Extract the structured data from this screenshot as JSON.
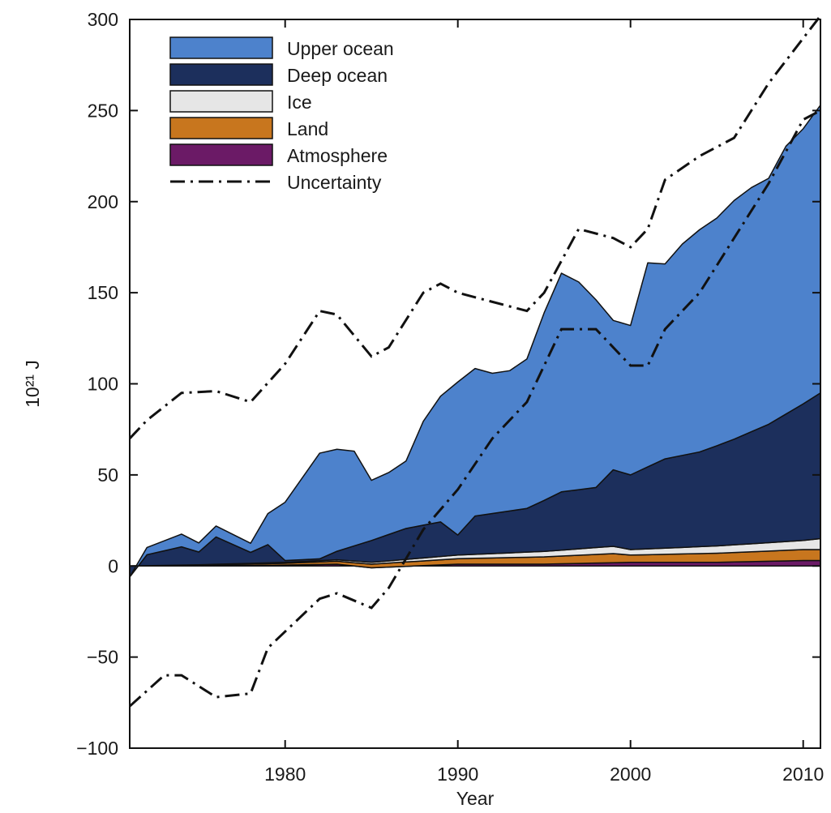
{
  "chart_data": {
    "type": "area",
    "xlabel": "Year",
    "ylabel": "10²¹ J",
    "xlim": [
      1971,
      2011
    ],
    "ylim": [
      -100,
      300
    ],
    "x_ticks": [
      1980,
      1990,
      2000,
      2010
    ],
    "y_ticks": [
      -100,
      -50,
      0,
      50,
      100,
      150,
      200,
      250,
      300
    ],
    "legend_position": "top-left",
    "stacked": true,
    "series": [
      {
        "name": "Atmosphere",
        "color": "#6b1a66",
        "points": [
          [
            1971,
            0
          ],
          [
            1975,
            0
          ],
          [
            1980,
            0.5
          ],
          [
            1983,
            1
          ],
          [
            1985,
            -1
          ],
          [
            1990,
            1
          ],
          [
            1995,
            1
          ],
          [
            2000,
            2
          ],
          [
            2005,
            2
          ],
          [
            2010,
            3
          ],
          [
            2011,
            3
          ]
        ]
      },
      {
        "name": "Land",
        "color": "#c8761e",
        "points": [
          [
            1971,
            0
          ],
          [
            1980,
            1
          ],
          [
            1985,
            2
          ],
          [
            1990,
            3
          ],
          [
            1995,
            4
          ],
          [
            1999,
            5
          ],
          [
            2000,
            4
          ],
          [
            2005,
            5
          ],
          [
            2010,
            6
          ],
          [
            2011,
            6
          ]
        ]
      },
      {
        "name": "Ice",
        "color": "#e6e6e6",
        "points": [
          [
            1971,
            0
          ],
          [
            1980,
            0.5
          ],
          [
            1985,
            1
          ],
          [
            1990,
            2
          ],
          [
            1995,
            3
          ],
          [
            1999,
            4
          ],
          [
            2000,
            3
          ],
          [
            2005,
            4
          ],
          [
            2010,
            5
          ],
          [
            2011,
            6
          ]
        ]
      },
      {
        "name": "Deep ocean",
        "color": "#1c2f5c",
        "points": [
          [
            1971,
            -6
          ],
          [
            1972,
            6
          ],
          [
            1974,
            10
          ],
          [
            1975,
            7
          ],
          [
            1976,
            15
          ],
          [
            1978,
            6
          ],
          [
            1979,
            10
          ],
          [
            1980,
            1
          ],
          [
            1982,
            1
          ],
          [
            1985,
            12
          ],
          [
            1987,
            17
          ],
          [
            1989,
            19
          ],
          [
            1990,
            11
          ],
          [
            1991,
            21
          ],
          [
            1994,
            24
          ],
          [
            1996,
            32
          ],
          [
            1998,
            33
          ],
          [
            1999,
            42
          ],
          [
            2000,
            41
          ],
          [
            2002,
            49
          ],
          [
            2004,
            52
          ],
          [
            2006,
            58
          ],
          [
            2008,
            65
          ],
          [
            2009,
            70
          ],
          [
            2011,
            80
          ]
        ]
      },
      {
        "name": "Upper ocean",
        "color": "#4d82cc",
        "points": [
          [
            1971,
            0
          ],
          [
            1972,
            4
          ],
          [
            1974,
            7
          ],
          [
            1975,
            5
          ],
          [
            1976,
            6
          ],
          [
            1978,
            5
          ],
          [
            1979,
            17
          ],
          [
            1980,
            32
          ],
          [
            1982,
            58
          ],
          [
            1983,
            56
          ],
          [
            1984,
            52
          ],
          [
            1985,
            33
          ],
          [
            1986,
            34
          ],
          [
            1987,
            37
          ],
          [
            1988,
            57
          ],
          [
            1989,
            69
          ],
          [
            1990,
            84
          ],
          [
            1991,
            81
          ],
          [
            1992,
            77
          ],
          [
            1993,
            77
          ],
          [
            1994,
            82
          ],
          [
            1995,
            103
          ],
          [
            1996,
            120
          ],
          [
            1997,
            114
          ],
          [
            1998,
            103
          ],
          [
            1999,
            82
          ],
          [
            2000,
            82
          ],
          [
            2001,
            112
          ],
          [
            2002,
            107
          ],
          [
            2003,
            116
          ],
          [
            2004,
            122
          ],
          [
            2005,
            125
          ],
          [
            2006,
            131
          ],
          [
            2007,
            134
          ],
          [
            2008,
            135
          ],
          [
            2009,
            147
          ],
          [
            2010,
            151
          ],
          [
            2011,
            158
          ]
        ]
      }
    ],
    "uncertainty": {
      "name": "Uncertainty",
      "upper": [
        [
          1971,
          70
        ],
        [
          1972,
          80
        ],
        [
          1974,
          95
        ],
        [
          1976,
          96
        ],
        [
          1978,
          90
        ],
        [
          1980,
          111
        ],
        [
          1982,
          140
        ],
        [
          1983,
          138
        ],
        [
          1985,
          115
        ],
        [
          1986,
          120
        ],
        [
          1988,
          150
        ],
        [
          1989,
          155
        ],
        [
          1990,
          150
        ],
        [
          1992,
          145
        ],
        [
          1994,
          140
        ],
        [
          1995,
          150
        ],
        [
          1997,
          185
        ],
        [
          1999,
          180
        ],
        [
          2000,
          175
        ],
        [
          2001,
          185
        ],
        [
          2002,
          212
        ],
        [
          2004,
          225
        ],
        [
          2006,
          235
        ],
        [
          2008,
          265
        ],
        [
          2011,
          302
        ]
      ],
      "lower": [
        [
          1971,
          -77
        ],
        [
          1973,
          -60
        ],
        [
          1974,
          -60
        ],
        [
          1976,
          -72
        ],
        [
          1978,
          -70
        ],
        [
          1979,
          -45
        ],
        [
          1982,
          -18
        ],
        [
          1983,
          -15
        ],
        [
          1985,
          -23
        ],
        [
          1986,
          -12
        ],
        [
          1988,
          20
        ],
        [
          1990,
          42
        ],
        [
          1992,
          70
        ],
        [
          1994,
          90
        ],
        [
          1996,
          130
        ],
        [
          1998,
          130
        ],
        [
          2000,
          110
        ],
        [
          2001,
          110
        ],
        [
          2002,
          130
        ],
        [
          2004,
          150
        ],
        [
          2006,
          180
        ],
        [
          2008,
          210
        ],
        [
          2010,
          245
        ],
        [
          2011,
          250
        ]
      ]
    },
    "legend": [
      {
        "label": "Upper ocean",
        "kind": "patch",
        "color": "#4d82cc"
      },
      {
        "label": "Deep ocean",
        "kind": "patch",
        "color": "#1c2f5c"
      },
      {
        "label": "Ice",
        "kind": "patch",
        "color": "#e6e6e6"
      },
      {
        "label": "Land",
        "kind": "patch",
        "color": "#c8761e"
      },
      {
        "label": "Atmosphere",
        "kind": "patch",
        "color": "#6b1a66"
      },
      {
        "label": "Uncertainty",
        "kind": "dashdot",
        "color": "#111111"
      }
    ]
  }
}
